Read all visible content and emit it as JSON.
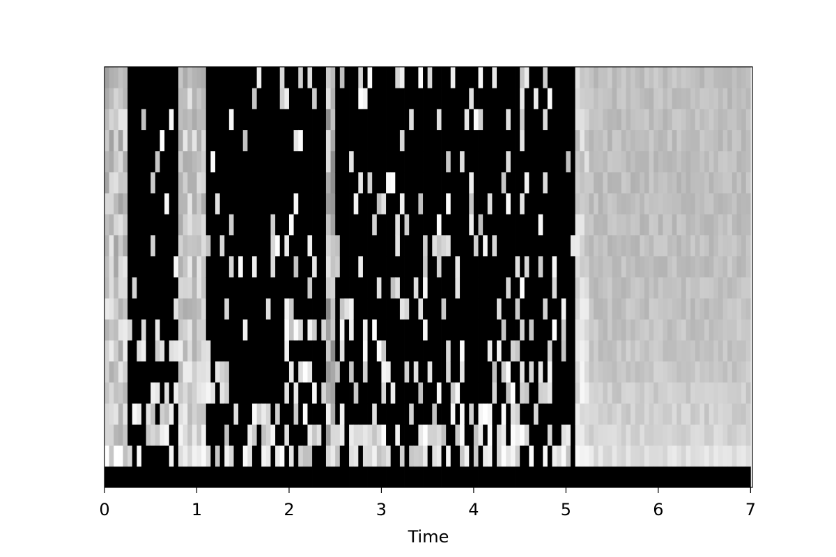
{
  "chart_data": {
    "type": "heatmap",
    "title": "",
    "xlabel": "Time",
    "ylabel": "",
    "xlim": [
      0,
      7.02
    ],
    "x_ticks": [
      0,
      1,
      2,
      3,
      4,
      5,
      6,
      7
    ],
    "x_tick_labels": [
      "0",
      "1",
      "2",
      "3",
      "4",
      "5",
      "6",
      "7"
    ],
    "grid": false,
    "colormap": "gray",
    "n_bins": 20,
    "n_frames": 140,
    "frame_duration": 0.05,
    "bin_order": "bottom-to-top",
    "time_segments": [
      {
        "start": 0.0,
        "end": 0.25,
        "level": 0.75,
        "contrast": 0.15
      },
      {
        "start": 0.25,
        "end": 0.82,
        "level": 0.18,
        "contrast": 0.75
      },
      {
        "start": 0.82,
        "end": 1.1,
        "level": 0.78,
        "contrast": 0.12
      },
      {
        "start": 1.1,
        "end": 2.4,
        "level": 0.2,
        "contrast": 0.75
      },
      {
        "start": 2.4,
        "end": 2.5,
        "level": 0.7,
        "contrast": 0.2
      },
      {
        "start": 2.5,
        "end": 5.1,
        "level": 0.22,
        "contrast": 0.75
      },
      {
        "start": 5.1,
        "end": 5.25,
        "level": 0.82,
        "contrast": 0.1
      },
      {
        "start": 5.25,
        "end": 7.02,
        "level": 0.74,
        "contrast": 0.05
      }
    ],
    "bins_low_energy_bonus": [
      0.0,
      0.55,
      0.35,
      0.28,
      0.22,
      0.18,
      0.14,
      0.1,
      0.08,
      0.06,
      0.05,
      0.04,
      0.03,
      0.03,
      0.02,
      0.02,
      0.02,
      0.03,
      0.04,
      0.05
    ],
    "dark_bins": [
      0
    ]
  }
}
